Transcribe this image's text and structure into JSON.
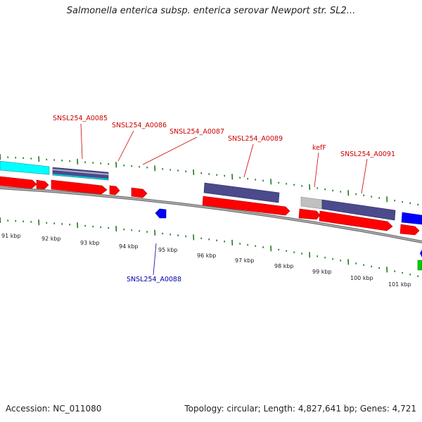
{
  "title": "Salmonella enterica subsp. enterica serovar Newport str. SL2...",
  "footer": {
    "accession": "Accession: NC_011080",
    "summary": "Topology: circular; Length: 4,827,641 bp; Genes: 4,721"
  },
  "colors": {
    "cds_forward": "#ff0000",
    "protein_bar": "#4a4a8c",
    "cds_reverse": "#0000ff",
    "rna": "#00ffff",
    "pseudo": "#c0c0c0",
    "other": "#00cc00",
    "tick": "#1e7a1e",
    "backbone": "#808080",
    "label_forward": "#cc0000",
    "label_reverse": "#0000aa"
  },
  "scale": {
    "unit": "kbp",
    "labels": [
      "91 kbp",
      "92 kbp",
      "93 kbp",
      "94 kbp",
      "95 kbp",
      "96 kbp",
      "97 kbp",
      "98 kbp",
      "99 kbp",
      "100 kbp",
      "101 kbp"
    ]
  },
  "gene_labels": {
    "a0085": "SNSL254_A0085",
    "a0086": "SNSL254_A0086",
    "a0087": "SNSL254_A0087",
    "a0088": "SNSL254_A0088",
    "a0089": "SNSL254_A0089",
    "kefF": "kefF",
    "a0091": "SNSL254_A0091"
  }
}
